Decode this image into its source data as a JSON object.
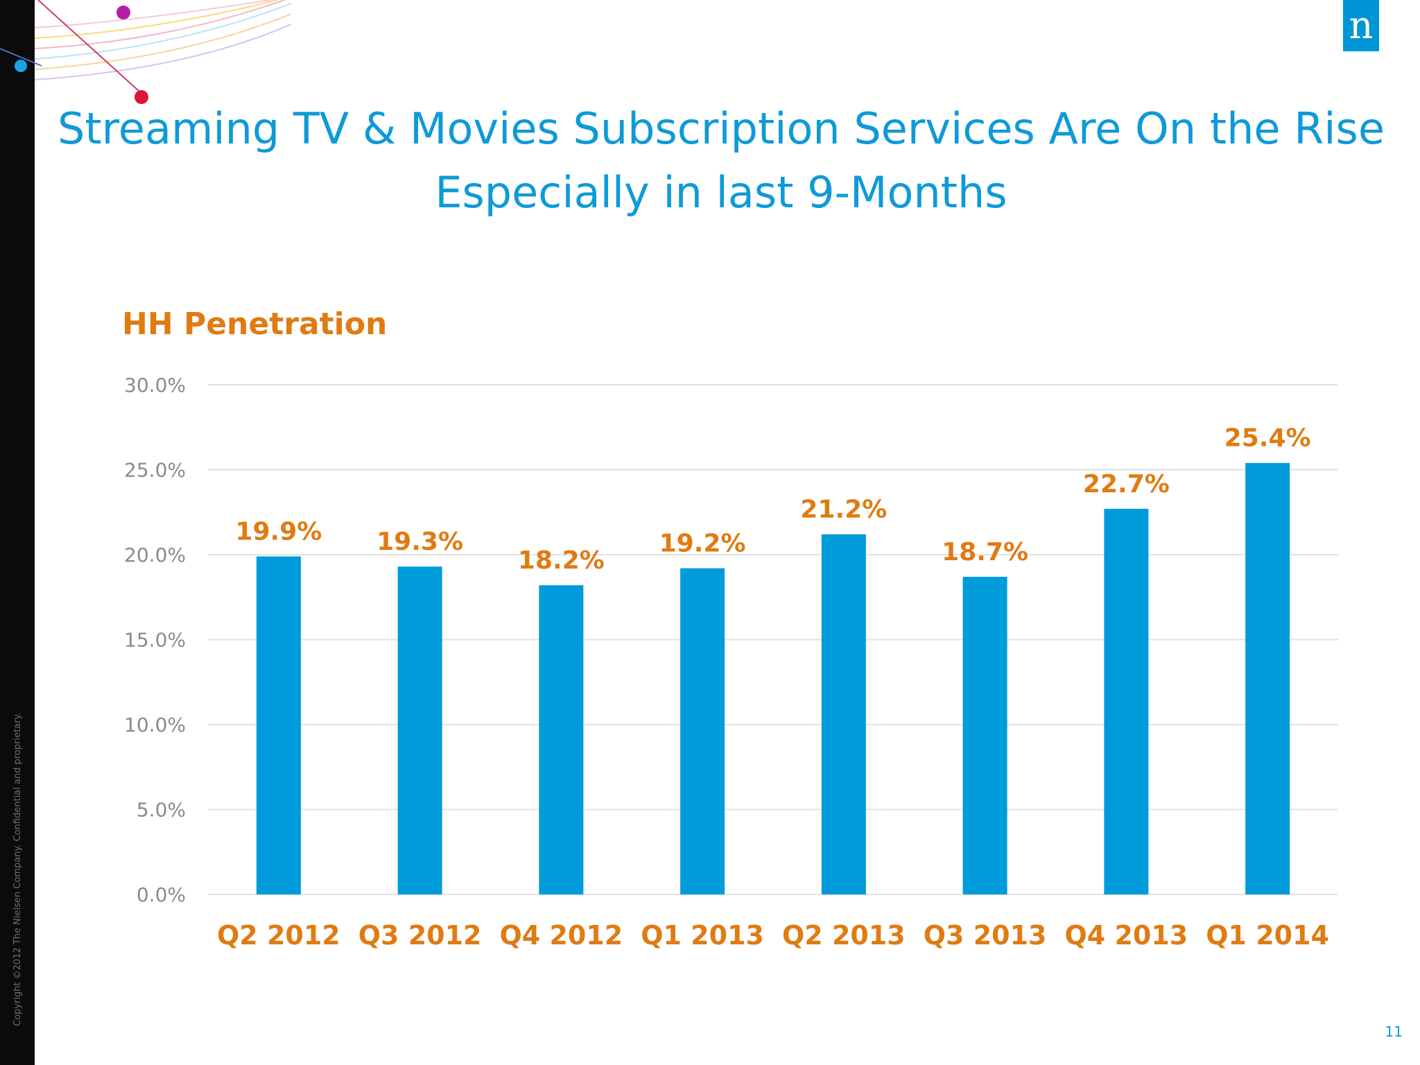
{
  "slide": {
    "title_line1": "Streaming TV & Movies Subscription Services Are On the Rise",
    "title_line2": "Especially in last 9-Months",
    "copyright": "Copyright ©2012 The Nielsen Company. Confidential and proprietary.",
    "logo_letter": "n",
    "page_number": "11"
  },
  "colors": {
    "bar": "#009bdb",
    "label": "#e07b12",
    "title": "#0e9ad8",
    "grid": "#e2e2e2",
    "tick": "#8a8a8a"
  },
  "chart_data": {
    "type": "bar",
    "title": "HH Penetration",
    "categories": [
      "Q2 2012",
      "Q3 2012",
      "Q4 2012",
      "Q1 2013",
      "Q2 2013",
      "Q3 2013",
      "Q4 2013",
      "Q1 2014"
    ],
    "values": [
      19.9,
      19.3,
      18.2,
      19.2,
      21.2,
      18.7,
      22.7,
      25.4
    ],
    "value_labels": [
      "19.9%",
      "19.3%",
      "18.2%",
      "19.2%",
      "21.2%",
      "18.7%",
      "22.7%",
      "25.4%"
    ],
    "yticks": [
      "0.0%",
      "5.0%",
      "10.0%",
      "15.0%",
      "20.0%",
      "25.0%",
      "30.0%"
    ],
    "ylim": [
      0,
      30
    ],
    "grid": true,
    "legend": "none"
  }
}
